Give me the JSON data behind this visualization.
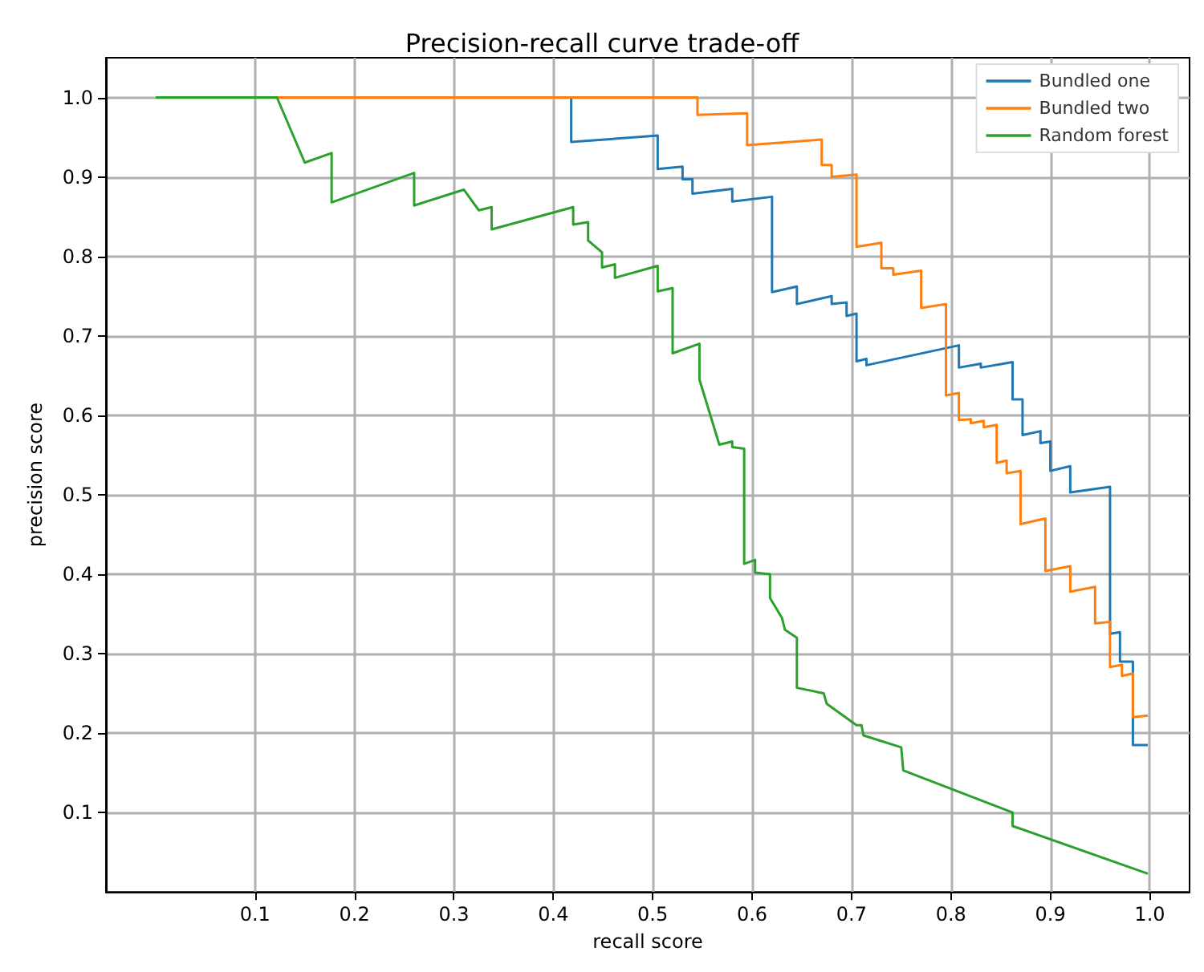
{
  "chart_data": {
    "type": "line",
    "title": "Precision-recall curve trade-off",
    "xlabel": "recall score",
    "ylabel": "precision score",
    "xlim": [
      -0.05,
      1.04
    ],
    "ylim": [
      0,
      1.05
    ],
    "xticks": [
      0.1,
      0.2,
      0.3,
      0.4,
      0.5,
      0.6,
      0.7,
      0.8,
      0.9,
      {
        "value": 1,
        "label": "1.0"
      }
    ],
    "yticks": [
      0.1,
      0.2,
      0.3,
      0.4,
      0.5,
      0.6,
      0.7,
      0.8,
      0.9,
      {
        "value": 1,
        "label": "1.0"
      }
    ],
    "grid": true,
    "legend": "top right",
    "series": [
      {
        "name": "Bundled one",
        "color": "#1f77b4",
        "x": [
          0.418,
          0.418,
          0.505,
          0.505,
          0.53,
          0.53,
          0.54,
          0.54,
          0.58,
          0.58,
          0.62,
          0.62,
          0.645,
          0.645,
          0.68,
          0.68,
          0.695,
          0.695,
          0.705,
          0.705,
          0.715,
          0.715,
          0.808,
          0.808,
          0.83,
          0.83,
          0.862,
          0.862,
          0.872,
          0.872,
          0.89,
          0.89,
          0.9,
          0.9,
          0.92,
          0.92,
          0.96,
          0.96,
          0.97,
          0.97,
          0.983,
          0.983,
          0.998
        ],
        "values": [
          1,
          0.944,
          0.952,
          0.91,
          0.913,
          0.897,
          0.897,
          0.879,
          0.885,
          0.869,
          0.875,
          0.755,
          0.762,
          0.74,
          0.75,
          0.74,
          0.742,
          0.725,
          0.728,
          0.668,
          0.671,
          0.663,
          0.688,
          0.66,
          0.665,
          0.66,
          0.667,
          0.62,
          0.62,
          0.575,
          0.58,
          0.565,
          0.567,
          0.53,
          0.536,
          0.503,
          0.51,
          0.325,
          0.327,
          0.29,
          0.29,
          0.185,
          0.185
        ]
      },
      {
        "name": "Bundled two",
        "color": "#ff7f0e",
        "x": [
          0.122,
          0.545,
          0.545,
          0.595,
          0.595,
          0.67,
          0.67,
          0.68,
          0.68,
          0.705,
          0.705,
          0.73,
          0.73,
          0.742,
          0.742,
          0.77,
          0.77,
          0.795,
          0.795,
          0.808,
          0.808,
          0.82,
          0.82,
          0.833,
          0.833,
          0.846,
          0.846,
          0.856,
          0.856,
          0.87,
          0.87,
          0.895,
          0.895,
          0.92,
          0.92,
          0.945,
          0.945,
          0.96,
          0.96,
          0.972,
          0.972,
          0.983,
          0.983,
          0.998
        ],
        "values": [
          1,
          1,
          0.978,
          0.98,
          0.94,
          0.947,
          0.915,
          0.915,
          0.9,
          0.903,
          0.812,
          0.817,
          0.785,
          0.785,
          0.777,
          0.782,
          0.735,
          0.74,
          0.625,
          0.628,
          0.594,
          0.595,
          0.59,
          0.593,
          0.585,
          0.588,
          0.54,
          0.543,
          0.527,
          0.53,
          0.463,
          0.47,
          0.404,
          0.41,
          0.378,
          0.384,
          0.338,
          0.34,
          0.283,
          0.286,
          0.272,
          0.275,
          0.22,
          0.222
        ]
      },
      {
        "name": "Random forest",
        "color": "#2ca02c",
        "x": [
          0,
          0.122,
          0.15,
          0.177,
          0.177,
          0.26,
          0.26,
          0.31,
          0.325,
          0.338,
          0.338,
          0.42,
          0.42,
          0.435,
          0.435,
          0.449,
          0.449,
          0.462,
          0.462,
          0.505,
          0.505,
          0.52,
          0.52,
          0.547,
          0.547,
          0.567,
          0.58,
          0.58,
          0.592,
          0.592,
          0.603,
          0.603,
          0.618,
          0.618,
          0.63,
          0.633,
          0.645,
          0.645,
          0.672,
          0.675,
          0.705,
          0.71,
          0.712,
          0.75,
          0.752,
          0.862,
          0.862,
          0.998
        ],
        "values": [
          1,
          1,
          0.918,
          0.93,
          0.868,
          0.905,
          0.864,
          0.884,
          0.858,
          0.862,
          0.834,
          0.862,
          0.84,
          0.843,
          0.82,
          0.805,
          0.786,
          0.79,
          0.773,
          0.788,
          0.756,
          0.76,
          0.678,
          0.69,
          0.645,
          0.563,
          0.567,
          0.56,
          0.558,
          0.413,
          0.418,
          0.402,
          0.4,
          0.37,
          0.345,
          0.33,
          0.32,
          0.257,
          0.25,
          0.237,
          0.21,
          0.21,
          0.197,
          0.182,
          0.153,
          0.1,
          0.083,
          0.023
        ]
      }
    ]
  }
}
